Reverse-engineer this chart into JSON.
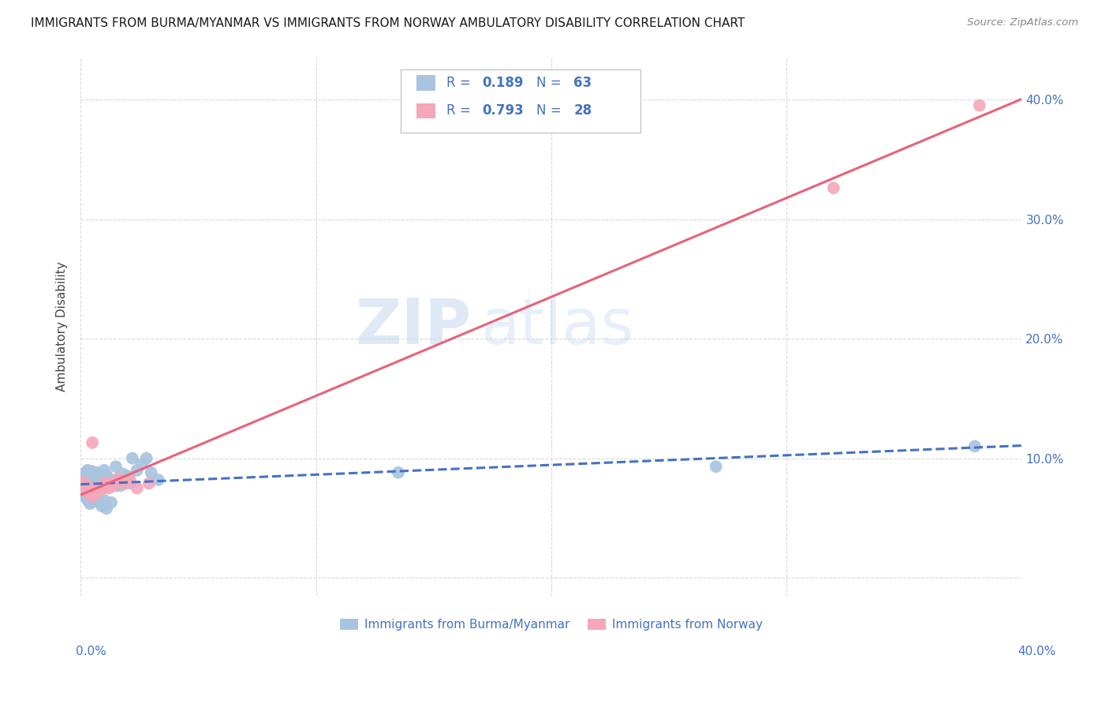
{
  "title": "IMMIGRANTS FROM BURMA/MYANMAR VS IMMIGRANTS FROM NORWAY AMBULATORY DISABILITY CORRELATION CHART",
  "source": "Source: ZipAtlas.com",
  "ylabel": "Ambulatory Disability",
  "xlim": [
    0.0,
    0.4
  ],
  "ylim": [
    -0.015,
    0.435
  ],
  "grid_color": "#d0d0d0",
  "background_color": "#ffffff",
  "watermark_zip": "ZIP",
  "watermark_atlas": "atlas",
  "series": [
    {
      "name": "Immigrants from Burma/Myanmar",
      "color": "#a8c4e0",
      "edge_color": "#a8c4e0",
      "R": 0.189,
      "N": 63,
      "line_color": "#4472c4",
      "line_style": "--",
      "x": [
        0.001,
        0.002,
        0.002,
        0.003,
        0.003,
        0.003,
        0.004,
        0.004,
        0.004,
        0.005,
        0.005,
        0.005,
        0.006,
        0.006,
        0.006,
        0.007,
        0.007,
        0.008,
        0.008,
        0.009,
        0.009,
        0.01,
        0.01,
        0.01,
        0.011,
        0.011,
        0.012,
        0.012,
        0.013,
        0.014,
        0.015,
        0.015,
        0.016,
        0.017,
        0.018,
        0.019,
        0.02,
        0.021,
        0.022,
        0.024,
        0.026,
        0.028,
        0.03,
        0.033,
        0.001,
        0.001,
        0.002,
        0.002,
        0.003,
        0.003,
        0.004,
        0.004,
        0.005,
        0.006,
        0.007,
        0.008,
        0.009,
        0.01,
        0.011,
        0.013,
        0.135,
        0.27,
        0.38
      ],
      "y": [
        0.075,
        0.082,
        0.088,
        0.08,
        0.085,
        0.09,
        0.078,
        0.083,
        0.087,
        0.079,
        0.084,
        0.089,
        0.077,
        0.082,
        0.086,
        0.08,
        0.088,
        0.079,
        0.085,
        0.077,
        0.083,
        0.079,
        0.084,
        0.09,
        0.08,
        0.086,
        0.078,
        0.083,
        0.081,
        0.079,
        0.077,
        0.093,
        0.083,
        0.077,
        0.087,
        0.082,
        0.085,
        0.079,
        0.1,
        0.09,
        0.095,
        0.1,
        0.088,
        0.082,
        0.07,
        0.073,
        0.068,
        0.072,
        0.065,
        0.07,
        0.062,
        0.067,
        0.064,
        0.066,
        0.068,
        0.063,
        0.06,
        0.065,
        0.058,
        0.063,
        0.088,
        0.093,
        0.11
      ]
    },
    {
      "name": "Immigrants from Norway",
      "color": "#f4a7b9",
      "edge_color": "#f4a7b9",
      "R": 0.793,
      "N": 28,
      "line_color": "#e8627a",
      "line_style": "-",
      "x": [
        0.001,
        0.001,
        0.002,
        0.002,
        0.003,
        0.003,
        0.004,
        0.004,
        0.005,
        0.005,
        0.006,
        0.006,
        0.007,
        0.008,
        0.009,
        0.01,
        0.011,
        0.012,
        0.013,
        0.014,
        0.016,
        0.017,
        0.019,
        0.021,
        0.024,
        0.029,
        0.32,
        0.382
      ],
      "y": [
        0.075,
        0.08,
        0.073,
        0.078,
        0.072,
        0.076,
        0.07,
        0.075,
        0.068,
        0.113,
        0.07,
        0.074,
        0.072,
        0.076,
        0.074,
        0.079,
        0.077,
        0.075,
        0.079,
        0.077,
        0.083,
        0.081,
        0.079,
        0.082,
        0.075,
        0.079,
        0.326,
        0.395
      ]
    }
  ],
  "legend_color": "#4472c4",
  "legend_box_color": "#cccccc"
}
